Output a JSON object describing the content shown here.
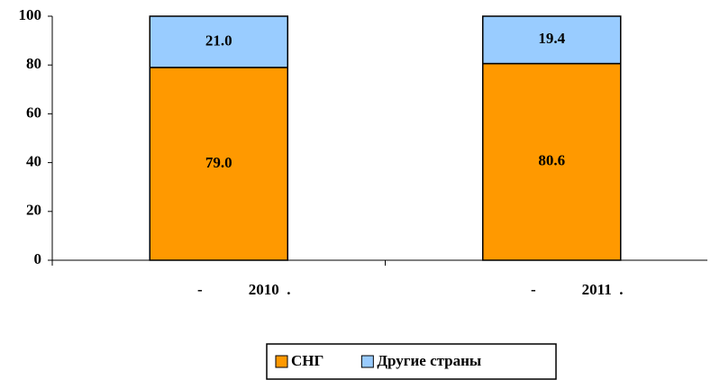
{
  "chart_data": {
    "type": "stacked_bar",
    "categories": [
      "-            2010  .",
      "-            2011  ."
    ],
    "series": [
      {
        "name": "СНГ",
        "color": "#ff9900",
        "values": [
          79.0,
          80.6
        ],
        "value_labels": [
          "79.0",
          "80.6"
        ]
      },
      {
        "name": "Другие страны",
        "color": "#99ccff",
        "values": [
          21.0,
          19.4
        ],
        "value_labels": [
          "21.0",
          "19.4"
        ]
      }
    ],
    "ylim": [
      0,
      100
    ],
    "yticks": [
      0,
      20,
      40,
      60,
      80,
      100
    ],
    "grid": false,
    "legend": "bottom"
  }
}
